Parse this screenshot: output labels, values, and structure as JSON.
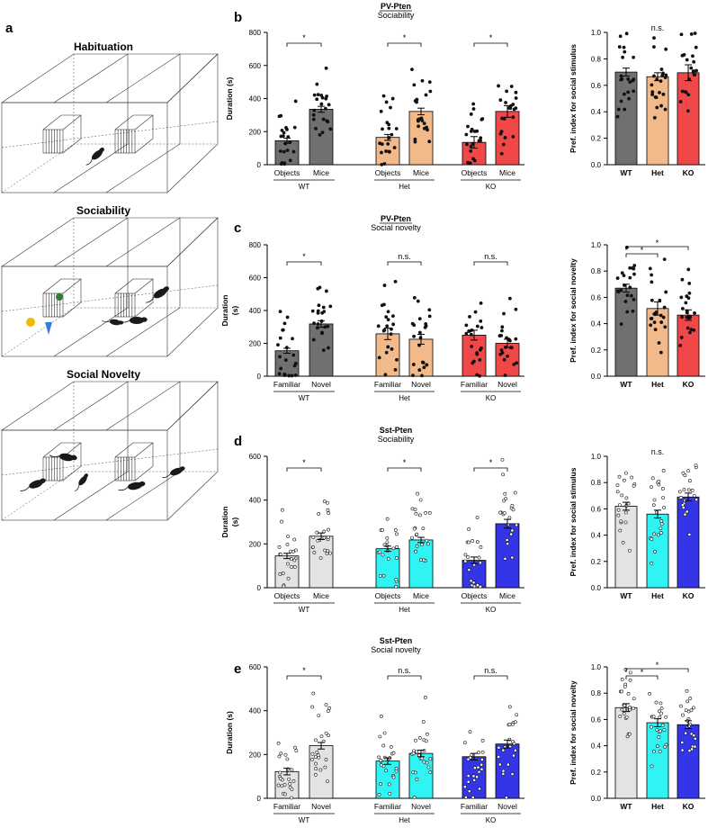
{
  "figure": {
    "schematic": {
      "label": "a",
      "panels": [
        {
          "title": "Habituation"
        },
        {
          "title": "Sociability"
        },
        {
          "title": "Social Novelty"
        }
      ]
    },
    "colors": {
      "pv": {
        "WT": "#707070",
        "Het": "#f2b98a",
        "KO": "#f04848"
      },
      "sst": {
        "WT": "#e3e3e3",
        "Het": "#30f4f4",
        "KO": "#3535e8"
      },
      "schematic_mouse": "#1a1a1a",
      "schematic_object1": "#f5b800",
      "schematic_object2": "#3a7ad8",
      "schematic_object3": "#2e7d32"
    }
  },
  "chart_data": [
    {
      "id": "b-left",
      "panel_label": "b",
      "type": "bar",
      "title_line1": "PV-Pten",
      "title_line2": "Sociability",
      "ylabel": "Duration (s)",
      "ylim": [
        0,
        800
      ],
      "yticks": [
        "0",
        "200",
        "400",
        "600",
        "800"
      ],
      "categories": [
        "Objects",
        "Mice",
        "Objects",
        "Mice",
        "Objects",
        "Mice"
      ],
      "groups": [
        "WT",
        "Het",
        "KO"
      ],
      "values": [
        145,
        335,
        165,
        322,
        135,
        322
      ],
      "errors": [
        15,
        18,
        18,
        20,
        35,
        35
      ],
      "significance": [
        "*",
        "*",
        "*"
      ]
    },
    {
      "id": "b-right",
      "type": "bar",
      "ylabel": "Pref. index for social stimulus",
      "ylim": [
        0,
        1.0
      ],
      "yticks": [
        "0.0",
        "0.2",
        "0.4",
        "0.6",
        "0.8",
        "1.0"
      ],
      "categories": [
        "WT",
        "Het",
        "KO"
      ],
      "values": [
        0.7,
        0.665,
        0.695
      ],
      "errors": [
        0.03,
        0.03,
        0.06
      ],
      "significance": [
        "",
        "n.s.",
        ""
      ]
    },
    {
      "id": "c-left",
      "panel_label": "c",
      "type": "bar",
      "title_line1": "PV-Pten",
      "title_line2": "Social novelty",
      "ylabel_line1": "Duration",
      "ylabel_line2": "(s)",
      "ylim": [
        0,
        800
      ],
      "yticks": [
        "0",
        "200",
        "400",
        "600",
        "800"
      ],
      "categories": [
        "Familiar",
        "Novel",
        "Familiar",
        "Novel",
        "Familiar",
        "Novel"
      ],
      "groups": [
        "WT",
        "Het",
        "KO"
      ],
      "values": [
        155,
        318,
        258,
        225,
        250,
        200
      ],
      "errors": [
        15,
        20,
        35,
        30,
        30,
        25
      ],
      "significance": [
        "*",
        "n.s.",
        "n.s."
      ]
    },
    {
      "id": "c-right",
      "type": "bar",
      "ylabel": "Pref. index for social novelty",
      "ylim": [
        0,
        1.0
      ],
      "yticks": [
        "0.0",
        "0.2",
        "0.4",
        "0.6",
        "0.8",
        "1.0"
      ],
      "categories": [
        "WT",
        "Het",
        "KO"
      ],
      "values": [
        0.67,
        0.515,
        0.465
      ],
      "errors": [
        0.03,
        0.05,
        0.04
      ],
      "significance": [
        "*",
        "*",
        "*"
      ]
    },
    {
      "id": "d-left",
      "panel_label": "d",
      "type": "bar",
      "title_line1": "Sst-Pten",
      "title_line2": "Sociability",
      "ylabel_line1": "Duration",
      "ylabel_line2": "(s)",
      "ylim": [
        0,
        600
      ],
      "yticks": [
        "0",
        "200",
        "400",
        "600"
      ],
      "categories": [
        "Objects",
        "Mice",
        "Objects",
        "Mice",
        "Objects",
        "Mice"
      ],
      "groups": [
        "WT",
        "Het",
        "KO"
      ],
      "values": [
        145,
        235,
        178,
        218,
        125,
        292
      ],
      "errors": [
        12,
        15,
        12,
        12,
        15,
        20
      ],
      "significance": [
        "*",
        "*",
        "*"
      ]
    },
    {
      "id": "d-right",
      "type": "bar",
      "ylabel": "Pref. index for social stimulus",
      "ylim": [
        0,
        1.0
      ],
      "yticks": [
        "0.0",
        "0.2",
        "0.4",
        "0.6",
        "0.8",
        "1.0"
      ],
      "categories": [
        "WT",
        "Het",
        "KO"
      ],
      "values": [
        0.62,
        0.56,
        0.69
      ],
      "errors": [
        0.03,
        0.03,
        0.03
      ],
      "significance": [
        "",
        "n.s.",
        ""
      ]
    },
    {
      "id": "e-left",
      "panel_label": "e",
      "type": "bar",
      "title_line1": "Sst-Pten",
      "title_line2": "Social novelty",
      "ylabel": "Duration (s)",
      "ylim": [
        0,
        600
      ],
      "yticks": [
        "0",
        "200",
        "400",
        "600"
      ],
      "categories": [
        "Familiar",
        "Novel",
        "Familiar",
        "Novel",
        "Familiar",
        "Novel"
      ],
      "groups": [
        "WT",
        "Het",
        "KO"
      ],
      "values": [
        122,
        240,
        170,
        205,
        190,
        248
      ],
      "errors": [
        15,
        15,
        15,
        15,
        15,
        18
      ],
      "significance": [
        "*",
        "n.s.",
        "n.s."
      ]
    },
    {
      "id": "e-right",
      "type": "bar",
      "ylabel": "Pref. index for social novelty",
      "ylim": [
        0,
        1.0
      ],
      "yticks": [
        "0.0",
        "0.2",
        "0.4",
        "0.6",
        "0.8",
        "1.0"
      ],
      "categories": [
        "WT",
        "Het",
        "KO"
      ],
      "values": [
        0.69,
        0.575,
        0.56
      ],
      "errors": [
        0.03,
        0.03,
        0.03
      ],
      "significance": [
        "*",
        "*",
        "*"
      ]
    }
  ]
}
